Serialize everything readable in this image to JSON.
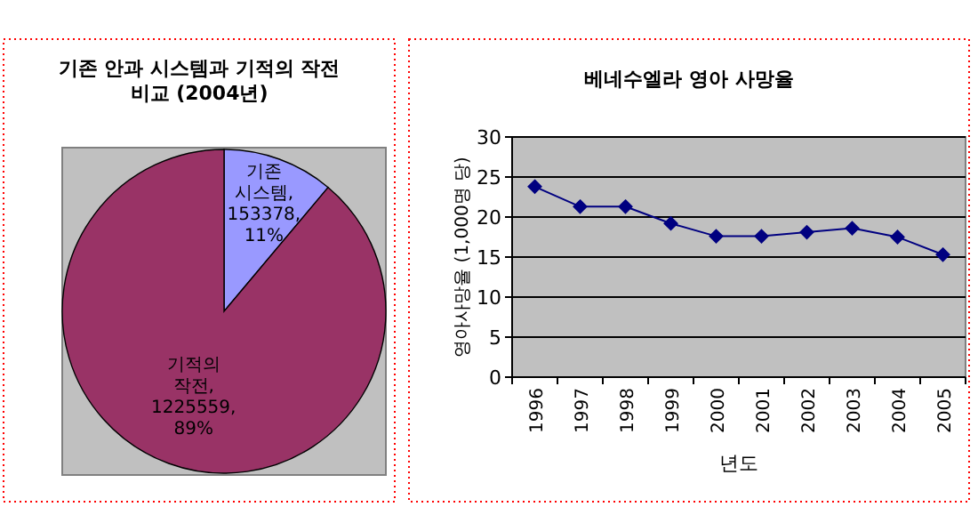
{
  "chart_data": [
    {
      "type": "pie",
      "title": "기존 안과 시스템과 기적의 작전 비교 (2004년)",
      "categories": [
        "기존 시스템",
        "기적의 작전"
      ],
      "values": [
        153378,
        1225559
      ],
      "colors": [
        "#9999ff",
        "#993366"
      ],
      "value_labels": [
        ", 153378, 11%",
        ", 1225559, 89%"
      ]
    },
    {
      "type": "line",
      "title": "베네수엘라 영아 사망율",
      "xlabel": "년도",
      "ylabel": "영아사망율 (1,000명 당)",
      "categories": [
        "1996",
        "1997",
        "1998",
        "1999",
        "2000",
        "2001",
        "2002",
        "2003",
        "2004",
        "2005"
      ],
      "series": [
        {
          "color": "#000080",
          "values": [
            23.8,
            21.3,
            21.3,
            19.2,
            17.6,
            17.6,
            18.1,
            18.6,
            17.5,
            15.3
          ]
        }
      ],
      "ylim": [
        0,
        30
      ],
      "yticks": [
        0,
        5,
        10,
        15,
        20,
        25,
        30
      ],
      "grid": "y",
      "marker": "diamond",
      "line_style": "solid"
    }
  ]
}
